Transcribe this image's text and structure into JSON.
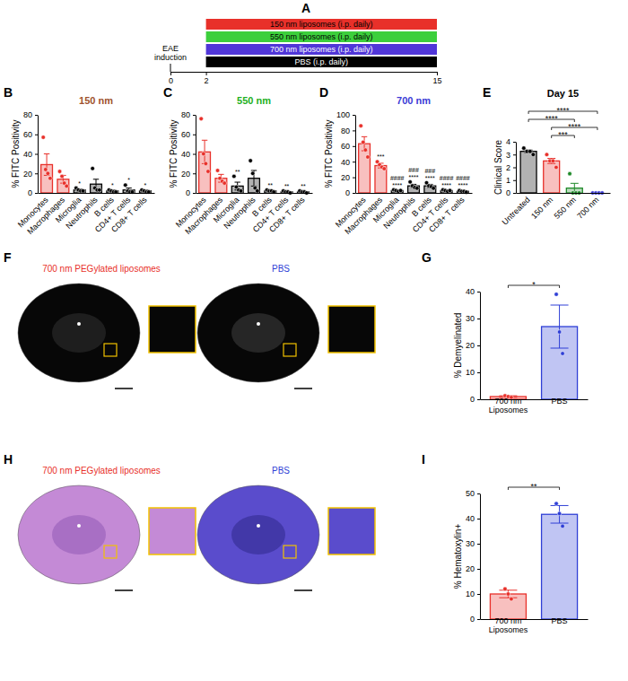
{
  "timeline": {
    "panel": "A",
    "label": "EAE induction",
    "xlim": [
      0,
      15
    ],
    "ticks": [
      0,
      2,
      15
    ],
    "bars": [
      {
        "text": "150 nm liposomes (i.p. daily)",
        "color": "#e8302a",
        "start": 2,
        "end": 15
      },
      {
        "text": "550 nm liposomes (i.p. daily)",
        "color": "#3ccf3c",
        "start": 2,
        "end": 15
      },
      {
        "text": "700 nm liposomes (i.p. daily)",
        "color": "#5036d8",
        "start": 2,
        "end": 15
      },
      {
        "text": "PBS (i.p. daily)",
        "color": "#000000",
        "start": 2,
        "end": 15
      }
    ]
  },
  "chart_data": [
    {
      "type": "bar",
      "panel": "B",
      "title": "150 nm",
      "ylabel": "% FITC Positivity",
      "categories": [
        "Monocytes",
        "Macrophages",
        "Microglia",
        "Neutrophils",
        "B cells",
        "CD4+ T cells",
        "CD8+ T cells"
      ],
      "values": [
        29,
        14,
        3,
        9,
        2,
        3,
        2
      ],
      "errors": [
        11,
        4,
        1,
        5,
        1,
        2,
        1
      ],
      "points": [
        [
          57,
          24,
          20,
          15
        ],
        [
          22,
          17,
          10,
          7
        ],
        [
          5,
          3,
          2,
          2
        ],
        [
          25,
          5,
          3,
          3
        ],
        [
          3,
          2,
          1,
          1
        ],
        [
          8,
          2,
          1,
          1
        ],
        [
          3,
          2,
          1,
          1
        ]
      ],
      "colors": [
        "#e8302a",
        "#e8302a",
        "#000000",
        "#000000",
        "#000000",
        "#000000",
        "#000000"
      ],
      "annotations": [
        null,
        null,
        [
          "*"
        ],
        null,
        [
          "*"
        ],
        [
          "*"
        ],
        [
          "*"
        ]
      ],
      "ylim": [
        0,
        80
      ],
      "yticks": [
        0,
        20,
        40,
        60,
        80
      ]
    },
    {
      "type": "bar",
      "panel": "C",
      "title": "550 nm",
      "ylabel": "% FITC Positivity",
      "categories": [
        "Monocytes",
        "Macrophages",
        "Microglia",
        "Neutrophils",
        "B cells",
        "CD4+ T cells",
        "CD8+ T cells"
      ],
      "values": [
        42,
        15,
        7,
        15,
        2,
        1,
        1
      ],
      "errors": [
        12,
        4,
        4,
        8,
        1,
        0.5,
        0.5
      ],
      "points": [
        [
          76,
          40,
          30,
          22
        ],
        [
          23,
          15,
          12,
          10
        ],
        [
          17,
          6,
          3,
          2
        ],
        [
          33,
          20,
          5,
          2
        ],
        [
          3,
          2,
          2,
          1
        ],
        [
          2,
          1,
          1,
          0
        ],
        [
          2,
          1,
          1,
          0
        ]
      ],
      "colors": [
        "#e8302a",
        "#e8302a",
        "#000000",
        "#000000",
        "#000000",
        "#000000",
        "#000000"
      ],
      "annotations": [
        null,
        null,
        [
          "**"
        ],
        null,
        [
          "**"
        ],
        [
          "**"
        ],
        [
          "**"
        ]
      ],
      "ylim": [
        0,
        80
      ],
      "yticks": [
        0,
        20,
        40,
        60,
        80
      ]
    },
    {
      "type": "bar",
      "panel": "D",
      "title": "700 nm",
      "ylabel": "% FITC Positivity",
      "categories": [
        "Monocytes",
        "Macrophages",
        "Microglia",
        "Neutrophils",
        "B cells",
        "CD4+ T cells",
        "CD8+ T cells"
      ],
      "values": [
        63,
        35,
        3,
        9,
        9,
        3,
        2
      ],
      "errors": [
        9,
        3,
        1,
        2,
        2,
        1,
        0.5
      ],
      "points": [
        [
          86,
          65,
          55,
          46
        ],
        [
          40,
          36,
          33,
          31
        ],
        [
          4,
          3,
          2,
          3
        ],
        [
          14,
          9,
          7,
          6
        ],
        [
          13,
          9,
          8,
          6
        ],
        [
          4,
          3,
          2,
          3
        ],
        [
          3,
          2,
          2,
          1
        ]
      ],
      "colors": [
        "#e8302a",
        "#e8302a",
        "#000000",
        "#000000",
        "#000000",
        "#000000",
        "#000000"
      ],
      "annotations": [
        null,
        [
          "***"
        ],
        [
          "####",
          "****"
        ],
        [
          "###",
          "****"
        ],
        [
          "###",
          "****"
        ],
        [
          "####",
          "****"
        ],
        [
          "####",
          "****"
        ]
      ],
      "ylim": [
        0,
        100
      ],
      "yticks": [
        0,
        20,
        40,
        60,
        80,
        100
      ]
    },
    {
      "type": "bar",
      "panel": "E",
      "title": "Day 15",
      "ylabel": "Clinical Score",
      "categories": [
        "Untreated",
        "150 nm",
        "550 nm",
        "700 nm"
      ],
      "values": [
        3.25,
        2.5,
        0.375,
        0
      ],
      "errors": [
        0.1,
        0.2,
        0.375,
        0
      ],
      "points": [
        [
          3.5,
          3.25,
          3.25,
          3
        ],
        [
          3,
          2.5,
          2.5,
          2
        ],
        [
          1.5,
          0,
          0,
          0
        ],
        [
          0,
          0,
          0,
          0
        ]
      ],
      "colors": [
        "#000000",
        "#e8302a",
        "#1f8a2a",
        "#3d3dd6"
      ],
      "comparisons": [
        {
          "from": 0,
          "to": 3,
          "label": "****"
        },
        {
          "from": 0,
          "to": 2,
          "label": "****"
        },
        {
          "from": 1,
          "to": 3,
          "label": "****"
        },
        {
          "from": 1,
          "to": 2,
          "label": "***"
        }
      ],
      "ylim": [
        0,
        4
      ],
      "yticks": [
        0,
        1,
        2,
        3,
        4
      ]
    },
    {
      "type": "bar",
      "panel": "G",
      "ylabel": "% Demyelinated",
      "categories": [
        "700 nm Liposomes",
        "PBS"
      ],
      "values": [
        1,
        27
      ],
      "errors": [
        0.3,
        8
      ],
      "points": [
        [
          1.3,
          1,
          0.7
        ],
        [
          39,
          25,
          17
        ]
      ],
      "colors": [
        "#e8302a",
        "#2f3fd6"
      ],
      "comparisons": [
        {
          "from": 0,
          "to": 1,
          "label": "*"
        }
      ],
      "ylim": [
        0,
        40
      ],
      "yticks": [
        0,
        10,
        20,
        30,
        40
      ]
    },
    {
      "type": "bar",
      "panel": "I",
      "ylabel": "% Hematoxylin+",
      "categories": [
        "700 nm Liposomes",
        "PBS"
      ],
      "values": [
        10,
        41.7
      ],
      "errors": [
        1.5,
        3.5
      ],
      "points": [
        [
          12,
          10,
          8
        ],
        [
          46,
          42,
          37
        ]
      ],
      "colors": [
        "#e8302a",
        "#2f3fd6"
      ],
      "comparisons": [
        {
          "from": 0,
          "to": 1,
          "label": "**"
        }
      ],
      "ylim": [
        0,
        50
      ],
      "yticks": [
        0,
        10,
        20,
        30,
        40,
        50
      ]
    }
  ],
  "images": [
    {
      "panel": "F",
      "items": [
        {
          "label": "700 nm PEGylated liposomes",
          "color": "#e8302a"
        },
        {
          "label": "PBS",
          "color": "#2f3fd6"
        }
      ]
    },
    {
      "panel": "H",
      "items": [
        {
          "label": "700 nm PEGylated liposomes",
          "color": "#e8302a"
        },
        {
          "label": "PBS",
          "color": "#2f3fd6"
        }
      ]
    }
  ]
}
